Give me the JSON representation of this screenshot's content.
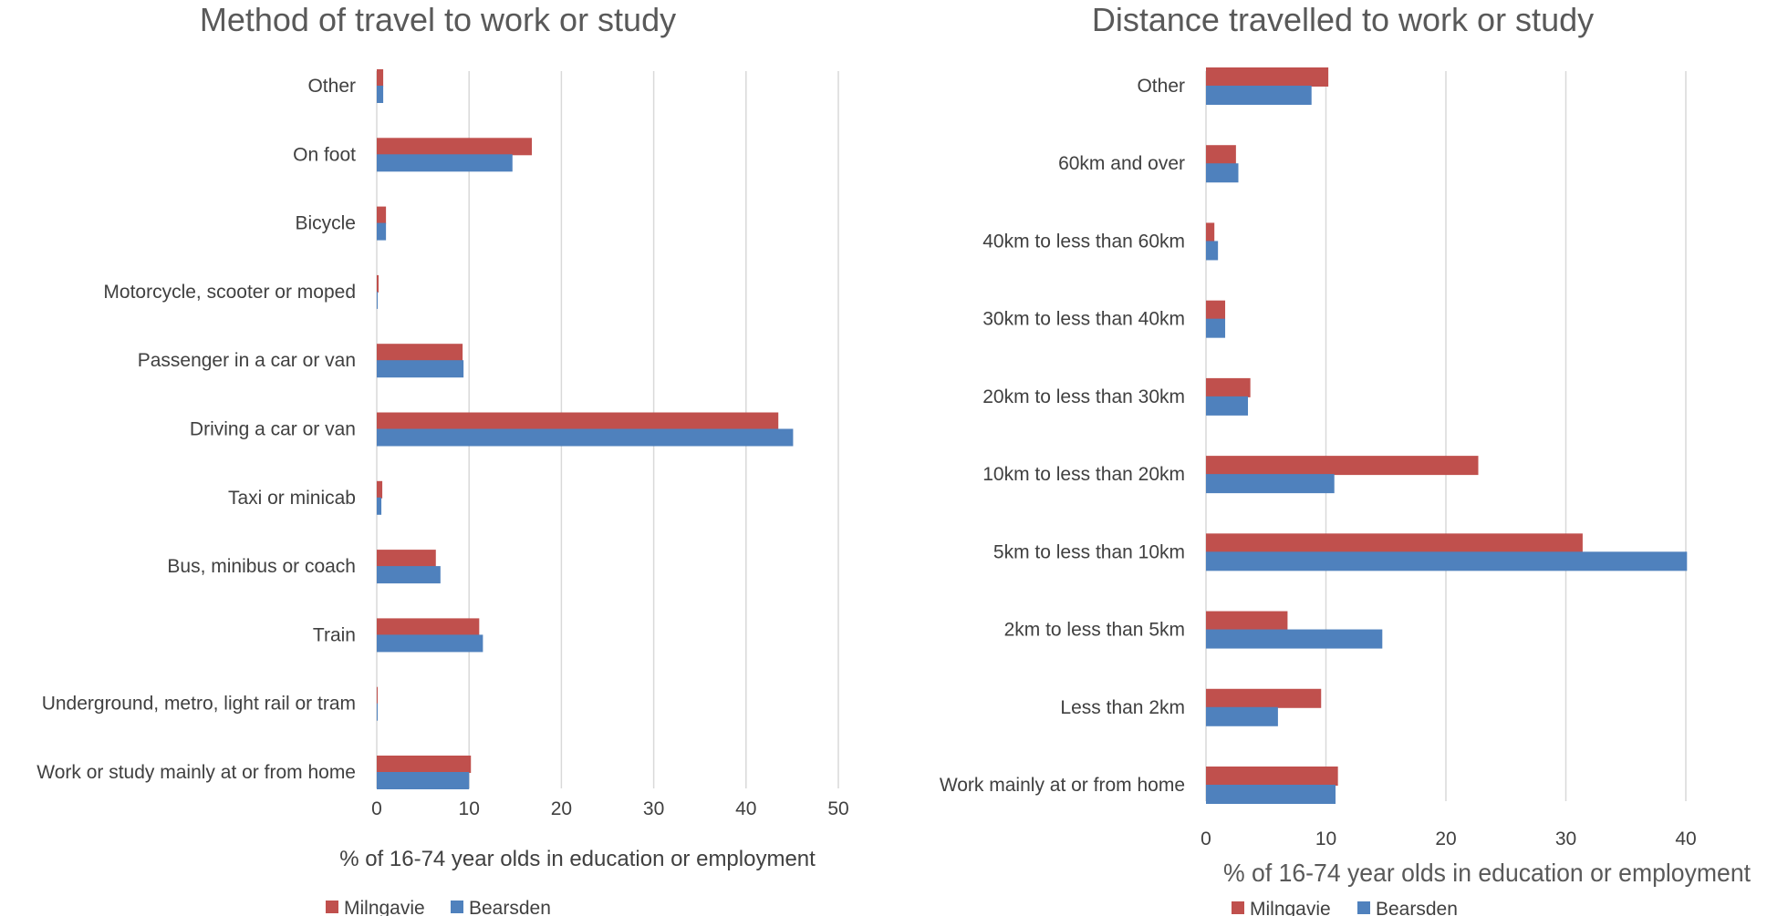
{
  "colors": {
    "milngavie": "#c0504d",
    "bearsden": "#4f81bd"
  },
  "chart_data": [
    {
      "type": "bar",
      "orientation": "horizontal",
      "title": "Method of travel to work or study",
      "xlabel": "% of 16-74 year olds in education or employment",
      "ylabel": "",
      "xlim": [
        0,
        50
      ],
      "ticks": [
        "0",
        "10",
        "20",
        "30",
        "40",
        "50"
      ],
      "grid": true,
      "legend_position": "bottom-left",
      "categories": [
        "Other",
        "On foot",
        "Bicycle",
        "Motorcycle, scooter or moped",
        "Passenger in a car or van",
        "Driving a car or van",
        "Taxi or minicab",
        "Bus, minibus or coach",
        "Train",
        "Underground, metro, light rail or tram",
        "Work or study mainly at or from home"
      ],
      "series": [
        {
          "name": "Milngavie",
          "values": [
            0.7,
            16.8,
            1.0,
            0.2,
            9.3,
            43.5,
            0.6,
            6.4,
            11.1,
            0.1,
            10.2
          ]
        },
        {
          "name": "Bearsden",
          "values": [
            0.7,
            14.7,
            1.0,
            0.1,
            9.4,
            45.1,
            0.5,
            6.9,
            11.5,
            0.1,
            10.0
          ]
        }
      ]
    },
    {
      "type": "bar",
      "orientation": "horizontal",
      "title": "Distance travelled to work or study",
      "xlabel": "% of 16-74 year olds in education or employment",
      "ylabel": "",
      "xlim": [
        0,
        40
      ],
      "ticks": [
        "0",
        "10",
        "20",
        "30",
        "40"
      ],
      "grid": true,
      "legend_position": "bottom-left",
      "categories": [
        "Other",
        "60km and over",
        "40km to less than 60km",
        "30km to less than 40km",
        "20km to less than 30km",
        "10km to less than 20km",
        "5km to less than 10km",
        "2km to less than 5km",
        "Less than 2km",
        "Work mainly at or from home"
      ],
      "series": [
        {
          "name": "Milngavie",
          "values": [
            10.2,
            2.5,
            0.7,
            1.6,
            3.7,
            22.7,
            31.4,
            6.8,
            9.6,
            11.0
          ]
        },
        {
          "name": "Bearsden",
          "values": [
            8.8,
            2.7,
            1.0,
            1.6,
            3.5,
            10.7,
            40.1,
            14.7,
            6.0,
            10.8
          ]
        }
      ]
    }
  ]
}
